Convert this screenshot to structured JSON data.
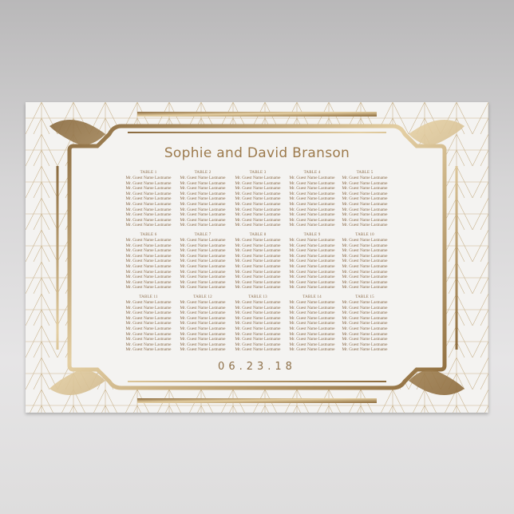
{
  "title": "Sophie and David Branson",
  "date": "06.23.18",
  "colors": {
    "gold": "#b08d5b",
    "text": "#8a6a48",
    "paper": "#f4f3f1"
  },
  "tables": [
    {
      "name": "TABLE 1",
      "guests": [
        "Mr. Guest Name Lastname",
        "Mr. Guest Name Lastname",
        "Mr. Guest Name Lastname",
        "Mr. Guest Name Lastname",
        "Mr. Guest Name Lastname",
        "Mr. Guest Name Lastname",
        "Mr. Guest Name Lastname",
        "Mr. Guest Name Lastname",
        "Mr. Guest Name Lastname",
        "Mr. Guest Name Lastname"
      ]
    },
    {
      "name": "TABLE 2",
      "guests": [
        "Mr. Guest Name Lastname",
        "Mr. Guest Name Lastname",
        "Mr. Guest Name Lastname",
        "Mr. Guest Name Lastname",
        "Mr. Guest Name Lastname",
        "Mr. Guest Name Lastname",
        "Mr. Guest Name Lastname",
        "Mr. Guest Name Lastname",
        "Mr. Guest Name Lastname",
        "Mr. Guest Name Lastname"
      ]
    },
    {
      "name": "TABLE 3",
      "guests": [
        "Mr. Guest Name Lastname",
        "Mr. Guest Name Lastname",
        "Mr. Guest Name Lastname",
        "Mr. Guest Name Lastname",
        "Mr. Guest Name Lastname",
        "Mr. Guest Name Lastname",
        "Mr. Guest Name Lastname",
        "Mr. Guest Name Lastname",
        "Mr. Guest Name Lastname",
        "Mr. Guest Name Lastname"
      ]
    },
    {
      "name": "TABLE 4",
      "guests": [
        "Mr. Guest Name Lastname",
        "Mr. Guest Name Lastname",
        "Mr. Guest Name Lastname",
        "Mr. Guest Name Lastname",
        "Mr. Guest Name Lastname",
        "Mr. Guest Name Lastname",
        "Mr. Guest Name Lastname",
        "Mr. Guest Name Lastname",
        "Mr. Guest Name Lastname",
        "Mr. Guest Name Lastname"
      ]
    },
    {
      "name": "TABLE 5",
      "guests": [
        "Mr. Guest Name Lastname",
        "Mr. Guest Name Lastname",
        "Mr. Guest Name Lastname",
        "Mr. Guest Name Lastname",
        "Mr. Guest Name Lastname",
        "Mr. Guest Name Lastname",
        "Mr. Guest Name Lastname",
        "Mr. Guest Name Lastname",
        "Mr. Guest Name Lastname",
        "Mr. Guest Name Lastname"
      ]
    },
    {
      "name": "TABLE 6",
      "guests": [
        "Mr. Guest Name Lastname",
        "Mr. Guest Name Lastname",
        "Mr. Guest Name Lastname",
        "Mr. Guest Name Lastname",
        "Mr. Guest Name Lastname",
        "Mr. Guest Name Lastname",
        "Mr. Guest Name Lastname",
        "Mr. Guest Name Lastname",
        "Mr. Guest Name Lastname",
        "Mr. Guest Name Lastname"
      ]
    },
    {
      "name": "TABLE 7",
      "guests": [
        "Mr. Guest Name Lastname",
        "Mr. Guest Name Lastname",
        "Mr. Guest Name Lastname",
        "Mr. Guest Name Lastname",
        "Mr. Guest Name Lastname",
        "Mr. Guest Name Lastname",
        "Mr. Guest Name Lastname",
        "Mr. Guest Name Lastname",
        "Mr. Guest Name Lastname",
        "Mr. Guest Name Lastname"
      ]
    },
    {
      "name": "TABLE 8",
      "guests": [
        "Mr. Guest Name Lastname",
        "Mr. Guest Name Lastname",
        "Mr. Guest Name Lastname",
        "Mr. Guest Name Lastname",
        "Mr. Guest Name Lastname",
        "Mr. Guest Name Lastname",
        "Mr. Guest Name Lastname",
        "Mr. Guest Name Lastname",
        "Mr. Guest Name Lastname",
        "Mr. Guest Name Lastname"
      ]
    },
    {
      "name": "TABLE 9",
      "guests": [
        "Mr. Guest Name Lastname",
        "Mr. Guest Name Lastname",
        "Mr. Guest Name Lastname",
        "Mr. Guest Name Lastname",
        "Mr. Guest Name Lastname",
        "Mr. Guest Name Lastname",
        "Mr. Guest Name Lastname",
        "Mr. Guest Name Lastname",
        "Mr. Guest Name Lastname",
        "Mr. Guest Name Lastname"
      ]
    },
    {
      "name": "TABLE 10",
      "guests": [
        "Mr. Guest Name Lastname",
        "Mr. Guest Name Lastname",
        "Mr. Guest Name Lastname",
        "Mr. Guest Name Lastname",
        "Mr. Guest Name Lastname",
        "Mr. Guest Name Lastname",
        "Mr. Guest Name Lastname",
        "Mr. Guest Name Lastname",
        "Mr. Guest Name Lastname",
        "Mr. Guest Name Lastname"
      ]
    },
    {
      "name": "TABLE 11",
      "guests": [
        "Mr. Guest Name Lastname",
        "Mr. Guest Name Lastname",
        "Mr. Guest Name Lastname",
        "Mr. Guest Name Lastname",
        "Mr. Guest Name Lastname",
        "Mr. Guest Name Lastname",
        "Mr. Guest Name Lastname",
        "Mr. Guest Name Lastname",
        "Mr. Guest Name Lastname",
        "Mr. Guest Name Lastname"
      ]
    },
    {
      "name": "TABLE 12",
      "guests": [
        "Mr. Guest Name Lastname",
        "Mr. Guest Name Lastname",
        "Mr. Guest Name Lastname",
        "Mr. Guest Name Lastname",
        "Mr. Guest Name Lastname",
        "Mr. Guest Name Lastname",
        "Mr. Guest Name Lastname",
        "Mr. Guest Name Lastname",
        "Mr. Guest Name Lastname",
        "Mr. Guest Name Lastname"
      ]
    },
    {
      "name": "TABLE 13",
      "guests": [
        "Mr. Guest Name Lastname",
        "Mr. Guest Name Lastname",
        "Mr. Guest Name Lastname",
        "Mr. Guest Name Lastname",
        "Mr. Guest Name Lastname",
        "Mr. Guest Name Lastname",
        "Mr. Guest Name Lastname",
        "Mr. Guest Name Lastname",
        "Mr. Guest Name Lastname",
        "Mr. Guest Name Lastname"
      ]
    },
    {
      "name": "TABLE 14",
      "guests": [
        "Mr. Guest Name Lastname",
        "Mr. Guest Name Lastname",
        "Mr. Guest Name Lastname",
        "Mr. Guest Name Lastname",
        "Mr. Guest Name Lastname",
        "Mr. Guest Name Lastname",
        "Mr. Guest Name Lastname",
        "Mr. Guest Name Lastname",
        "Mr. Guest Name Lastname",
        "Mr. Guest Name Lastname"
      ]
    },
    {
      "name": "TABLE 15",
      "guests": [
        "Mr. Guest Name Lastname",
        "Mr. Guest Name Lastname",
        "Mr. Guest Name Lastname",
        "Mr. Guest Name Lastname",
        "Mr. Guest Name Lastname",
        "Mr. Guest Name Lastname",
        "Mr. Guest Name Lastname",
        "Mr. Guest Name Lastname",
        "Mr. Guest Name Lastname",
        "Mr. Guest Name Lastname"
      ]
    }
  ]
}
